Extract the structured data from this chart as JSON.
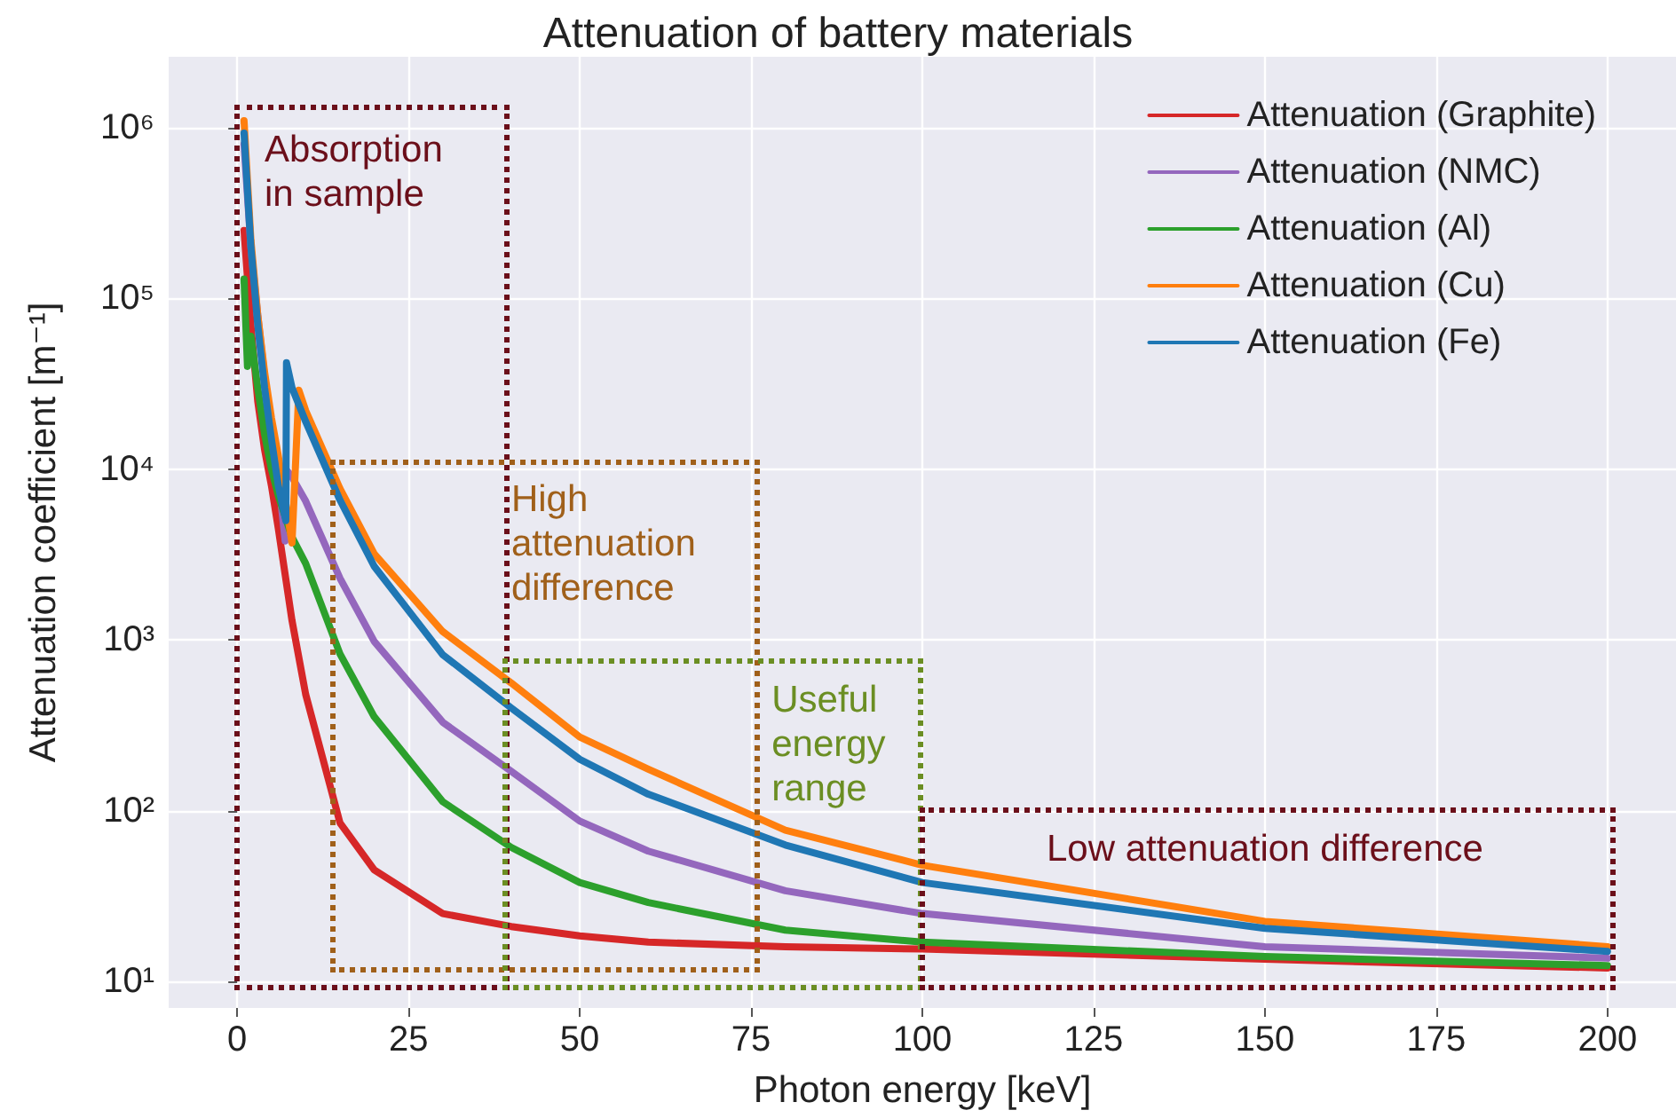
{
  "chart_data": {
    "type": "line",
    "title": "Attenuation of battery materials",
    "xlabel": "Photon energy [keV]",
    "ylabel": "Attenuation coefficient [m⁻¹]",
    "xlim": [
      -10,
      210
    ],
    "xticks": [
      0,
      25,
      50,
      75,
      100,
      125,
      150,
      175,
      200
    ],
    "ylim": [
      7,
      2600000
    ],
    "yticks": [
      {
        "value": 10,
        "label": "10¹"
      },
      {
        "value": 100,
        "label": "10²"
      },
      {
        "value": 1000,
        "label": "10³"
      },
      {
        "value": 10000,
        "label": "10⁴"
      },
      {
        "value": 100000,
        "label": "10⁵"
      },
      {
        "value": 1000000,
        "label": "10⁶"
      }
    ],
    "log": "y",
    "grid": true,
    "legend": "top right",
    "marker": "none",
    "line_style": "solid",
    "series": [
      {
        "name": "Attenuation (Graphite)",
        "color": "#d62728",
        "x": [
          1,
          2,
          3,
          4,
          5,
          6,
          8,
          10,
          15,
          20,
          30,
          40,
          50,
          60,
          80,
          100,
          150,
          200
        ],
        "values": [
          250000,
          70000,
          25000,
          13000,
          8000,
          4500,
          1300,
          480,
          85,
          45,
          25,
          21,
          18.5,
          17,
          16,
          15.5,
          13.5,
          12
        ]
      },
      {
        "name": "Attenuation (NMC)",
        "color": "#9467bd",
        "x": [
          1,
          2,
          3,
          4,
          5,
          6,
          7,
          7.1,
          8,
          10,
          15,
          20,
          30,
          40,
          50,
          60,
          80,
          100,
          150,
          200
        ],
        "values": [
          800000,
          200000,
          80000,
          35000,
          18000,
          9000,
          3800,
          10000,
          9000,
          6500,
          2300,
          980,
          330,
          170,
          87,
          58,
          34,
          25,
          16,
          13.7
        ]
      },
      {
        "name": "Attenuation (Al)",
        "color": "#2ca02c",
        "x": [
          1,
          1.5,
          2,
          3,
          4,
          5,
          6,
          8,
          10,
          15,
          20,
          30,
          40,
          50,
          60,
          80,
          100,
          150,
          200
        ],
        "values": [
          130000,
          40000,
          60000,
          30000,
          16000,
          10000,
          7000,
          4000,
          2800,
          830,
          355,
          113,
          61,
          38,
          29,
          20,
          17,
          14,
          12.4
        ]
      },
      {
        "name": "Attenuation (Cu)",
        "color": "#ff7f0e",
        "x": [
          1,
          2,
          3,
          4,
          5,
          6,
          8,
          9,
          10,
          15,
          20,
          30,
          40,
          50,
          60,
          80,
          100,
          150,
          200
        ],
        "values": [
          1100000,
          220000,
          80000,
          37000,
          20000,
          12000,
          3700,
          29000,
          22000,
          7700,
          3200,
          1120,
          560,
          270,
          175,
          77,
          48,
          22.5,
          16
        ]
      },
      {
        "name": "Attenuation (Fe)",
        "color": "#1f77b4",
        "x": [
          1,
          2,
          3,
          4,
          5,
          6,
          7.1,
          7.2,
          8,
          10,
          15,
          20,
          30,
          40,
          50,
          60,
          80,
          100,
          150,
          200
        ],
        "values": [
          930000,
          200000,
          70000,
          30000,
          15000,
          8000,
          5000,
          42000,
          30000,
          19000,
          6600,
          2700,
          820,
          400,
          200,
          125,
          63,
          38,
          20.5,
          15
        ]
      }
    ],
    "annotations": [
      "Absorption\nin sample",
      "High\nattenuation\ndifference",
      "Useful\nenergy\nrange",
      "Low attenuation difference"
    ]
  }
}
